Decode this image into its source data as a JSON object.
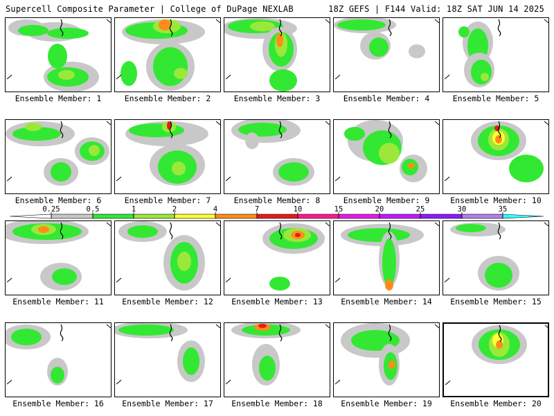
{
  "header": {
    "title": "Supercell Composite Parameter | College of DuPage NEXLAB",
    "valid": "18Z GEFS | F144 Valid: 18Z SAT JUN 14 2025"
  },
  "legend": {
    "labels": [
      "0.25",
      "0.5",
      "1",
      "2",
      "4",
      "7",
      "10",
      "15",
      "20",
      "25",
      "30",
      "35"
    ],
    "colors": [
      "#ffffff",
      "#c8c8c8",
      "#33e833",
      "#9be83a",
      "#ffff33",
      "#ff8c1a",
      "#e81a1a",
      "#ff1a8c",
      "#e81ae8",
      "#c01aff",
      "#8c1aff",
      "#b37fe8",
      "#33ffff"
    ]
  },
  "panel_label_prefix": "Ensemble Member:",
  "members": [
    {
      "label": "Ensemble Member: 1"
    },
    {
      "label": "Ensemble Member: 2"
    },
    {
      "label": "Ensemble Member: 3"
    },
    {
      "label": "Ensemble Member: 4"
    },
    {
      "label": "Ensemble Member: 5"
    },
    {
      "label": "Ensemble Member: 6"
    },
    {
      "label": "Ensemble Member: 7"
    },
    {
      "label": "Ensemble Member: 8"
    },
    {
      "label": "Ensemble Member: 9"
    },
    {
      "label": "Ensemble Member: 10"
    },
    {
      "label": "Ensemble Member: 11"
    },
    {
      "label": "Ensemble Member: 12"
    },
    {
      "label": "Ensemble Member: 13"
    },
    {
      "label": "Ensemble Member: 14"
    },
    {
      "label": "Ensemble Member: 15"
    },
    {
      "label": "Ensemble Member: 16"
    },
    {
      "label": "Ensemble Member: 17"
    },
    {
      "label": "Ensemble Member: 18"
    },
    {
      "label": "Ensemble Member: 19"
    },
    {
      "label": "Ensemble Member: 20"
    }
  ],
  "colors": {
    "gray": "#c8c8c8",
    "green": "#33e833",
    "lightgreen": "#9be83a",
    "yellow": "#ffff33",
    "orange": "#ff8c1a",
    "red": "#e81a1a"
  }
}
